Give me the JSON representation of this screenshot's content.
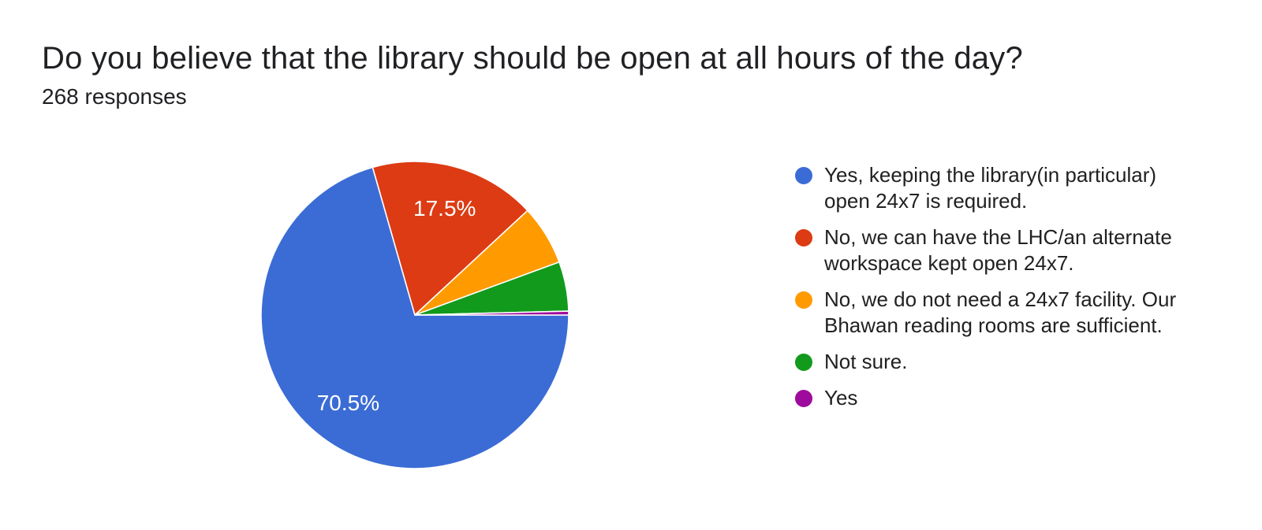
{
  "header": {
    "title": "Do you believe that the library should be open at all hours of the day?",
    "responses": "268 responses"
  },
  "legend": {
    "items": [
      {
        "name": "yes-24x7-required",
        "lines": [
          "Yes, keeping the library(in particular)",
          "open 24x7 is required."
        ]
      },
      {
        "name": "no-lhc-alternate",
        "lines": [
          "No, we can have the LHC/an alternate",
          "workspace kept open 24x7."
        ]
      },
      {
        "name": "no-bhawan-sufficient",
        "lines": [
          "No, we do not need a 24x7 facility. Our",
          "Bhawan reading rooms are sufficient."
        ]
      },
      {
        "name": "not-sure",
        "lines": [
          "Not sure."
        ]
      },
      {
        "name": "yes",
        "lines": [
          "Yes"
        ]
      }
    ]
  },
  "chart_data": {
    "type": "pie",
    "title": "Do you believe that the library should be open at all hours of the day?",
    "subtitle": "268 responses",
    "labels": [
      "Yes, keeping the library(in particular) open 24x7 is required.",
      "No, we can have the LHC/an alternate workspace kept open 24x7.",
      "No, we do not need a 24x7 facility. Our Bhawan reading rooms are sufficient.",
      "Not sure.",
      "Yes"
    ],
    "values": [
      70.5,
      17.5,
      6.3,
      5.2,
      0.4
    ],
    "slice_labels": [
      "70.5%",
      "17.5%",
      "",
      "",
      ""
    ],
    "colors": [
      "#3b6cd5",
      "#dc3b14",
      "#ff9b00",
      "#129a1d",
      "#9e0b9c"
    ],
    "start_angle_deg": 90,
    "direction": "clockwise",
    "legend_position": "right",
    "slice_border_color": "#ffffff"
  }
}
